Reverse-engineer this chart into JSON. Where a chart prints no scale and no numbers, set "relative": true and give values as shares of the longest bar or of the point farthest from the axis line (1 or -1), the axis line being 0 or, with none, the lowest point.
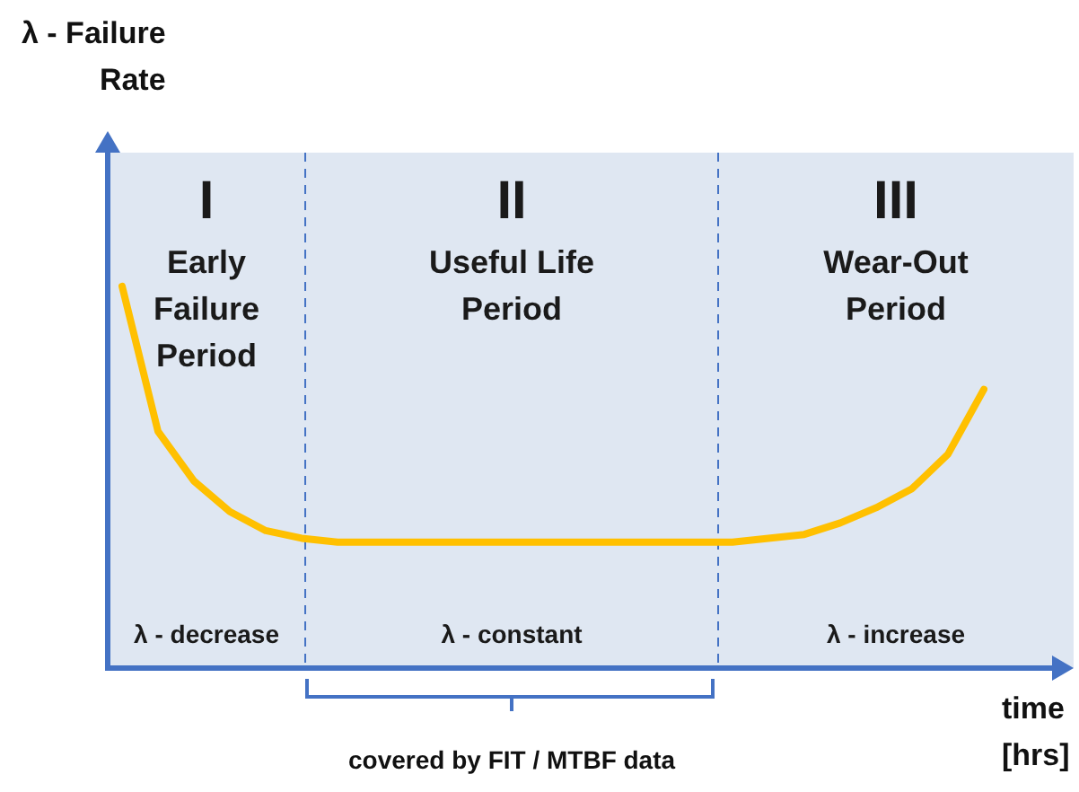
{
  "chart_data": {
    "type": "line",
    "relative": true,
    "xlabel": "time\n[hrs]",
    "categories": [
      null,
      null,
      null,
      null,
      null,
      null,
      null,
      null,
      null,
      null,
      null,
      null,
      null,
      null,
      null,
      null,
      null,
      null,
      null,
      null,
      null,
      null,
      null,
      null,
      null
    ],
    "series": [
      {
        "color": "#ffc000",
        "values": [
          1.0,
          0.62,
          0.49,
          0.41,
          0.36,
          0.34,
          0.33,
          0.33,
          0.33,
          0.33,
          0.33,
          0.33,
          0.33,
          0.33,
          0.33,
          0.33,
          0.33,
          0.33,
          0.34,
          0.35,
          0.38,
          0.42,
          0.47,
          0.56,
          0.73
        ]
      }
    ],
    "annotations": [
      "I\nEarly\nFailure\nPeriod",
      "II\nUseful Life\nPeriod",
      "III\nWear-Out\nPeriod",
      "λ - decrease",
      "λ - constant",
      "λ - increase",
      "covered by FIT / MTBF data",
      "λ - Failure\nRate"
    ]
  }
}
